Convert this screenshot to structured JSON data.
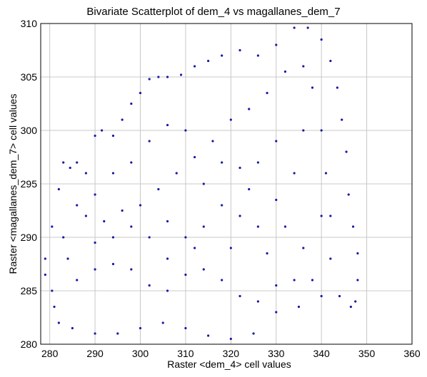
{
  "chart_data": {
    "type": "scatter",
    "title": "Bivariate Scatterplot of dem_4 vs magallanes_dem_7",
    "xlabel": "Raster <dem_4> cell values",
    "ylabel": "Raster <magallanes_dem_7> cell values",
    "xlim": [
      278,
      360
    ],
    "ylim": [
      280,
      310
    ],
    "xticks": [
      280,
      290,
      300,
      310,
      320,
      330,
      340,
      350,
      360
    ],
    "yticks": [
      280,
      285,
      290,
      295,
      300,
      305,
      310
    ],
    "grid": true,
    "point_color": "#1a1aa6",
    "series": [
      {
        "values": [
          [
            279.0,
            286.5
          ],
          [
            279.0,
            288.0
          ],
          [
            280.5,
            291.0
          ],
          [
            282.0,
            294.5
          ],
          [
            283.0,
            297.0
          ],
          [
            284.5,
            296.5
          ],
          [
            286.0,
            297.0
          ],
          [
            288.0,
            296.0
          ],
          [
            290.0,
            299.5
          ],
          [
            291.5,
            300.0
          ],
          [
            294.0,
            299.5
          ],
          [
            296.0,
            301.0
          ],
          [
            298.0,
            302.5
          ],
          [
            300.0,
            303.5
          ],
          [
            302.0,
            304.8
          ],
          [
            304.0,
            305.0
          ],
          [
            306.0,
            305.0
          ],
          [
            309.0,
            305.2
          ],
          [
            312.0,
            306.0
          ],
          [
            315.0,
            306.5
          ],
          [
            318.0,
            307.0
          ],
          [
            322.0,
            307.5
          ],
          [
            326.0,
            307.0
          ],
          [
            330.0,
            308.0
          ],
          [
            334.0,
            309.6
          ],
          [
            337.0,
            309.6
          ],
          [
            340.0,
            308.5
          ],
          [
            342.0,
            306.5
          ],
          [
            343.5,
            304.0
          ],
          [
            344.5,
            301.0
          ],
          [
            345.5,
            298.0
          ],
          [
            346.0,
            294.0
          ],
          [
            347.0,
            291.0
          ],
          [
            348.0,
            288.5
          ],
          [
            348.0,
            286.0
          ],
          [
            347.5,
            284.0
          ],
          [
            346.5,
            283.5
          ],
          [
            344.0,
            284.5
          ],
          [
            340.0,
            284.5
          ],
          [
            335.0,
            283.5
          ],
          [
            330.0,
            283.0
          ],
          [
            325.0,
            281.0
          ],
          [
            320.0,
            280.5
          ],
          [
            315.0,
            280.8
          ],
          [
            310.0,
            281.5
          ],
          [
            305.0,
            282.0
          ],
          [
            300.0,
            281.5
          ],
          [
            295.0,
            281.0
          ],
          [
            290.0,
            281.0
          ],
          [
            285.0,
            281.5
          ],
          [
            282.0,
            282.0
          ],
          [
            281.0,
            283.5
          ],
          [
            280.5,
            285.0
          ],
          [
            283.0,
            290.0
          ],
          [
            288.0,
            292.0
          ],
          [
            292.0,
            291.5
          ],
          [
            296.0,
            292.5
          ],
          [
            300.0,
            293.0
          ],
          [
            304.0,
            294.5
          ],
          [
            308.0,
            296.0
          ],
          [
            312.0,
            297.5
          ],
          [
            316.0,
            299.0
          ],
          [
            320.0,
            301.0
          ],
          [
            324.0,
            302.0
          ],
          [
            328.0,
            303.5
          ],
          [
            332.0,
            305.5
          ],
          [
            336.0,
            306.0
          ],
          [
            338.0,
            304.0
          ],
          [
            340.0,
            300.0
          ],
          [
            341.0,
            296.0
          ],
          [
            342.0,
            292.0
          ],
          [
            342.0,
            288.0
          ],
          [
            338.0,
            286.0
          ],
          [
            334.0,
            286.0
          ],
          [
            330.0,
            285.5
          ],
          [
            326.0,
            284.0
          ],
          [
            322.0,
            284.5
          ],
          [
            318.0,
            286.0
          ],
          [
            314.0,
            287.0
          ],
          [
            310.0,
            286.5
          ],
          [
            306.0,
            285.0
          ],
          [
            302.0,
            285.5
          ],
          [
            298.0,
            287.0
          ],
          [
            294.0,
            287.5
          ],
          [
            290.0,
            287.0
          ],
          [
            286.0,
            286.0
          ],
          [
            284.0,
            288.0
          ],
          [
            286.0,
            293.0
          ],
          [
            290.0,
            294.0
          ],
          [
            294.0,
            296.0
          ],
          [
            298.0,
            297.0
          ],
          [
            302.0,
            299.0
          ],
          [
            306.0,
            300.5
          ],
          [
            310.0,
            300.0
          ],
          [
            314.0,
            295.0
          ],
          [
            318.0,
            293.0
          ],
          [
            322.0,
            292.0
          ],
          [
            326.0,
            291.0
          ],
          [
            330.0,
            293.5
          ],
          [
            334.0,
            296.0
          ],
          [
            336.0,
            300.0
          ],
          [
            330.0,
            299.0
          ],
          [
            326.0,
            297.0
          ],
          [
            322.0,
            296.5
          ],
          [
            318.0,
            297.0
          ],
          [
            314.0,
            291.0
          ],
          [
            310.0,
            290.0
          ],
          [
            306.0,
            291.5
          ],
          [
            302.0,
            290.0
          ],
          [
            298.0,
            291.0
          ],
          [
            294.0,
            290.0
          ],
          [
            290.0,
            289.5
          ],
          [
            306.0,
            288.0
          ],
          [
            312.0,
            289.0
          ],
          [
            320.0,
            289.0
          ],
          [
            328.0,
            288.5
          ],
          [
            336.0,
            289.0
          ],
          [
            340.0,
            292.0
          ],
          [
            332.0,
            291.0
          ],
          [
            324.0,
            294.5
          ]
        ]
      }
    ]
  }
}
